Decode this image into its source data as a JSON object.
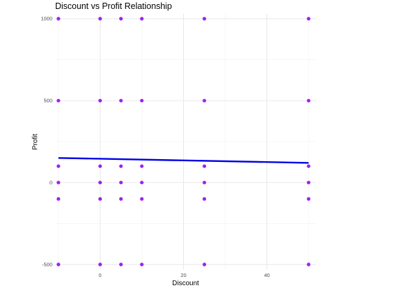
{
  "chart_data": {
    "type": "scatter",
    "title": "Discount vs Profit Relationship",
    "xlabel": "Discount",
    "ylabel": "Profit",
    "xlim": [
      -10.8,
      51.8
    ],
    "ylim": [
      -530,
      1030
    ],
    "x_ticks": [
      0,
      20,
      40
    ],
    "y_ticks": [
      -500,
      0,
      500,
      1000
    ],
    "grid": true,
    "legend": "none",
    "points": [
      {
        "x": -10,
        "y": 1000
      },
      {
        "x": 0,
        "y": 1000
      },
      {
        "x": 5,
        "y": 1000
      },
      {
        "x": 10,
        "y": 1000
      },
      {
        "x": 25,
        "y": 1000
      },
      {
        "x": 50,
        "y": 1000
      },
      {
        "x": -10,
        "y": 500
      },
      {
        "x": 0,
        "y": 500
      },
      {
        "x": 5,
        "y": 500
      },
      {
        "x": 10,
        "y": 500
      },
      {
        "x": 25,
        "y": 500
      },
      {
        "x": 50,
        "y": 500
      },
      {
        "x": -10,
        "y": 100
      },
      {
        "x": 0,
        "y": 100
      },
      {
        "x": 5,
        "y": 100
      },
      {
        "x": 10,
        "y": 100
      },
      {
        "x": 25,
        "y": 100
      },
      {
        "x": 50,
        "y": 100
      },
      {
        "x": -10,
        "y": 0
      },
      {
        "x": 0,
        "y": 0
      },
      {
        "x": 5,
        "y": 0
      },
      {
        "x": 10,
        "y": 0
      },
      {
        "x": 25,
        "y": 0
      },
      {
        "x": 50,
        "y": 0
      },
      {
        "x": -10,
        "y": -100
      },
      {
        "x": 0,
        "y": -100
      },
      {
        "x": 5,
        "y": -100
      },
      {
        "x": 10,
        "y": -100
      },
      {
        "x": 25,
        "y": -100
      },
      {
        "x": 50,
        "y": -100
      },
      {
        "x": -10,
        "y": -500
      },
      {
        "x": 0,
        "y": -500
      },
      {
        "x": 5,
        "y": -500
      },
      {
        "x": 10,
        "y": -500
      },
      {
        "x": 25,
        "y": -500
      },
      {
        "x": 50,
        "y": -500
      }
    ],
    "trend_line": {
      "x": [
        -10,
        50
      ],
      "y": [
        150,
        120
      ]
    },
    "colors": {
      "points": "#a020f0",
      "trend_line": "#0000e6"
    }
  }
}
